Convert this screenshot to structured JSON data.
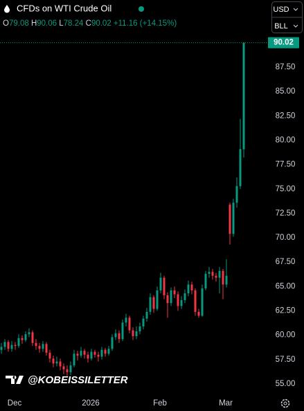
{
  "chart_data": {
    "type": "candlestick",
    "title": "CFDs on WTI Crude Oil",
    "ohlc_letters": [
      "O",
      "H",
      "L",
      "C"
    ],
    "change": "+11.16",
    "change_percent": "(+14.15%)",
    "up_color": "#089981",
    "down_color": "#f23645",
    "categories": [
      null,
      null,
      null,
      null,
      null,
      "Dec",
      null,
      null,
      null,
      null,
      null,
      null,
      null,
      null,
      null,
      null,
      null,
      null,
      null,
      null,
      null,
      null,
      null,
      null,
      null,
      null,
      null,
      "2026",
      null,
      null,
      null,
      null,
      null,
      null,
      null,
      null,
      null,
      null,
      null,
      null,
      null,
      null,
      null,
      null,
      null,
      null,
      null,
      "Feb",
      null,
      null,
      null,
      null,
      null,
      null,
      null,
      null,
      null,
      null,
      null,
      null,
      null,
      null,
      null,
      null,
      null,
      null,
      "Mar",
      null,
      null,
      null,
      null
    ],
    "series": {
      "open": [
        58.5,
        58.8,
        59.3,
        58.6,
        59.0,
        58.9,
        59.7,
        59.5,
        60.1,
        60.3,
        59.2,
        58.9,
        58.6,
        59.1,
        58.2,
        57.6,
        57.1,
        57.3,
        56.8,
        56.5,
        56.2,
        56.9,
        58.1,
        57.9,
        58.4,
        58.0,
        57.6,
        58.3,
        58.0,
        57.8,
        58.5,
        58.1,
        58.6,
        59.8,
        60.2,
        59.6,
        61.3,
        61.8,
        60.5,
        59.9,
        60.4,
        60.9,
        61.7,
        62.4,
        63.9,
        62.7,
        64.6,
        65.9,
        64.1,
        63.3,
        64.6,
        64.2,
        63.0,
        63.6,
        64.3,
        65.2,
        64.6,
        62.4,
        62.0,
        64.8,
        66.3,
        66.5,
        66.1,
        65.9,
        66.6,
        65.2,
        73.4,
        70.4,
        73.6,
        75.3,
        79.08
      ],
      "high": [
        59.2,
        59.6,
        59.5,
        59.4,
        59.3,
        60.1,
        60.0,
        60.4,
        60.7,
        60.5,
        59.6,
        59.2,
        59.4,
        59.3,
        58.5,
        57.9,
        57.8,
        57.6,
        57.1,
        56.9,
        57.3,
        58.5,
        58.4,
        58.8,
        58.6,
        58.3,
        58.6,
        58.5,
        58.3,
        58.8,
        58.7,
        58.9,
        60.1,
        60.6,
        60.5,
        61.6,
        62.2,
        62.0,
        60.8,
        60.9,
        61.3,
        62.0,
        62.8,
        64.3,
        64.1,
        65.0,
        66.4,
        66.1,
        64.4,
        64.9,
        65.0,
        64.5,
        64.0,
        64.7,
        65.6,
        65.5,
        64.8,
        62.7,
        65.2,
        66.6,
        67.0,
        66.8,
        66.4,
        67.0,
        66.8,
        67.8,
        73.6,
        74.0,
        76.2,
        82.2,
        90.06
      ],
      "low": [
        58.1,
        58.5,
        58.3,
        58.3,
        58.5,
        58.7,
        59.1,
        59.3,
        59.8,
        58.9,
        58.5,
        58.2,
        58.3,
        57.9,
        57.2,
        56.7,
        56.8,
        56.4,
        56.0,
        55.8,
        55.9,
        56.7,
        57.4,
        57.7,
        57.6,
        57.2,
        57.4,
        57.7,
        57.3,
        57.5,
        57.8,
        57.9,
        58.4,
        59.5,
        59.2,
        59.4,
        60.9,
        60.2,
        59.5,
        59.6,
        60.1,
        60.6,
        61.4,
        62.1,
        62.3,
        62.5,
        64.3,
        63.7,
        61.8,
        63.0,
        63.8,
        62.5,
        62.7,
        63.3,
        64.0,
        64.2,
        62.0,
        61.8,
        61.9,
        64.6,
        65.9,
        65.7,
        65.5,
        64.3,
        63.7,
        64.9,
        69.3,
        70.1,
        73.1,
        75.0,
        78.24
      ],
      "close": [
        58.8,
        59.3,
        58.6,
        59.0,
        58.9,
        59.7,
        59.5,
        60.1,
        60.3,
        59.2,
        58.9,
        58.6,
        59.1,
        58.2,
        57.6,
        57.1,
        57.3,
        56.8,
        56.5,
        56.2,
        56.9,
        58.1,
        57.9,
        58.4,
        58.0,
        57.6,
        58.3,
        58.0,
        57.8,
        58.5,
        58.1,
        58.6,
        59.8,
        60.2,
        59.6,
        61.3,
        61.8,
        60.5,
        59.9,
        60.4,
        60.9,
        61.7,
        62.4,
        63.9,
        62.7,
        64.6,
        65.9,
        64.1,
        63.3,
        64.6,
        64.2,
        63.0,
        63.6,
        64.3,
        65.2,
        64.6,
        62.4,
        62.0,
        64.8,
        66.3,
        66.5,
        66.1,
        65.9,
        66.6,
        65.2,
        66.1,
        70.4,
        73.6,
        75.3,
        79.1,
        90.02
      ]
    },
    "ylim": [
      54.0,
      94.4
    ],
    "yticks": [
      {
        "value": 55,
        "label": "55.00"
      },
      {
        "value": 57.5,
        "label": "57.50"
      },
      {
        "value": 60,
        "label": "60.00"
      },
      {
        "value": 62.5,
        "label": "62.50"
      },
      {
        "value": 65,
        "label": "65.00"
      },
      {
        "value": 67.5,
        "label": "67.50"
      },
      {
        "value": 70,
        "label": "70.00"
      },
      {
        "value": 72.5,
        "label": "72.50"
      },
      {
        "value": 75,
        "label": "75.00"
      },
      {
        "value": 77.5,
        "label": "77.50"
      },
      {
        "value": 80,
        "label": "80.00"
      },
      {
        "value": 82.5,
        "label": "82.50"
      },
      {
        "value": 85,
        "label": "85.00"
      },
      {
        "value": 87.5,
        "label": "87.50"
      }
    ],
    "grid": false
  },
  "ui": {
    "buttons": [
      "USD",
      "BLL"
    ],
    "watermark": "@KOBEISSILETTER"
  }
}
